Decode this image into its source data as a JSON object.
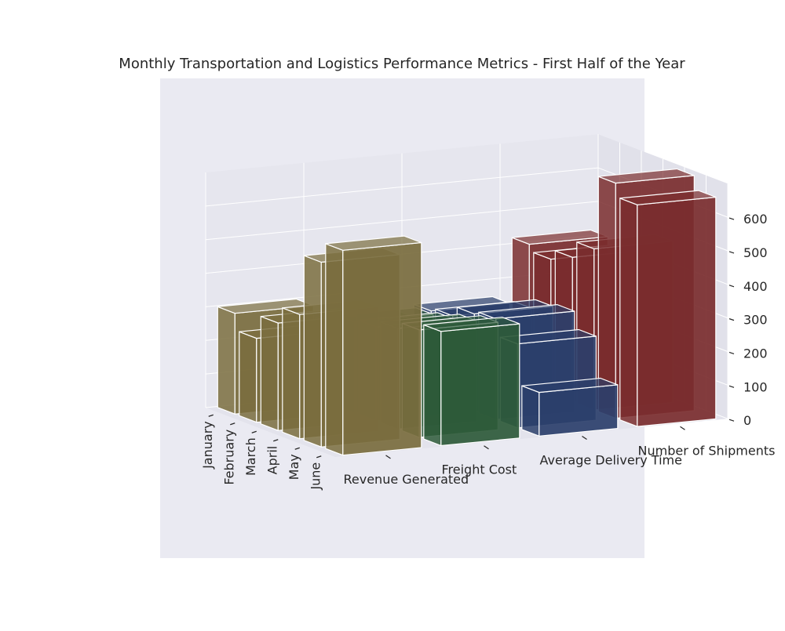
{
  "chart_data": {
    "type": "bar3d",
    "title": "Monthly Transportation and Logistics Performance Metrics - First Half of the Year",
    "months": [
      "January",
      "February",
      "March",
      "April",
      "May",
      "June"
    ],
    "metrics": [
      "Revenue Generated",
      "Freight Cost",
      "Average Delivery Time",
      "Number of Shipments"
    ],
    "series": [
      {
        "metric": "Revenue Generated",
        "color": "#7a6d3e",
        "values": [
          300,
          250,
          320,
          370,
          550,
          610
        ]
      },
      {
        "metric": "Freight Cost",
        "color": "#2e5a3a",
        "values": [
          240,
          270,
          280,
          300,
          320,
          340
        ]
      },
      {
        "metric": "Average Delivery Time",
        "color": "#2b3f6b",
        "values": [
          250,
          260,
          290,
          300,
          250,
          130
        ]
      },
      {
        "metric": "Number of Shipments",
        "color": "#7a2d2e",
        "values": [
          420,
          400,
          430,
          480,
          700,
          660
        ]
      }
    ],
    "zlim": [
      0,
      700
    ],
    "zticks": [
      0,
      100,
      200,
      300,
      400,
      500,
      600
    ],
    "grid": true,
    "background": "#eaeaf2"
  }
}
